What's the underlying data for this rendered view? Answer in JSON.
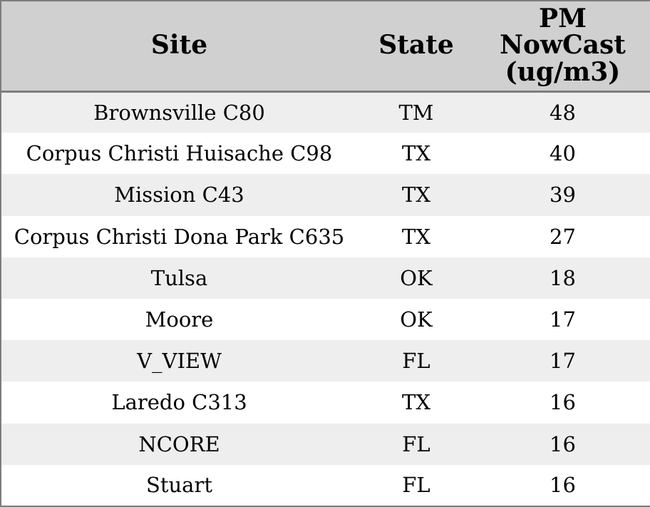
{
  "colors": {
    "border": "#7d7d7d",
    "header_bg": "#d0d0d0",
    "row_alt": "#eeeeee",
    "row_bg": "#ffffff",
    "text": "#000000"
  },
  "table": {
    "columns": [
      {
        "label": "Site"
      },
      {
        "label": "State"
      },
      {
        "label": "PM NowCast (ug/m3)",
        "lines": [
          "PM",
          "NowCast",
          "(ug/m3)"
        ]
      }
    ],
    "rows": [
      {
        "site": "Brownsville C80",
        "state": "TM",
        "pm": "48"
      },
      {
        "site": "Corpus Christi Huisache C98",
        "state": "TX",
        "pm": "40"
      },
      {
        "site": "Mission C43",
        "state": "TX",
        "pm": "39"
      },
      {
        "site": "Corpus Christi Dona Park C635",
        "state": "TX",
        "pm": "27"
      },
      {
        "site": "Tulsa",
        "state": "OK",
        "pm": "18"
      },
      {
        "site": "Moore",
        "state": "OK",
        "pm": "17"
      },
      {
        "site": "V_VIEW",
        "state": "FL",
        "pm": "17"
      },
      {
        "site": "Laredo C313",
        "state": "TX",
        "pm": "16"
      },
      {
        "site": "NCORE",
        "state": "FL",
        "pm": "16"
      },
      {
        "site": "Stuart",
        "state": "FL",
        "pm": "16"
      }
    ]
  }
}
